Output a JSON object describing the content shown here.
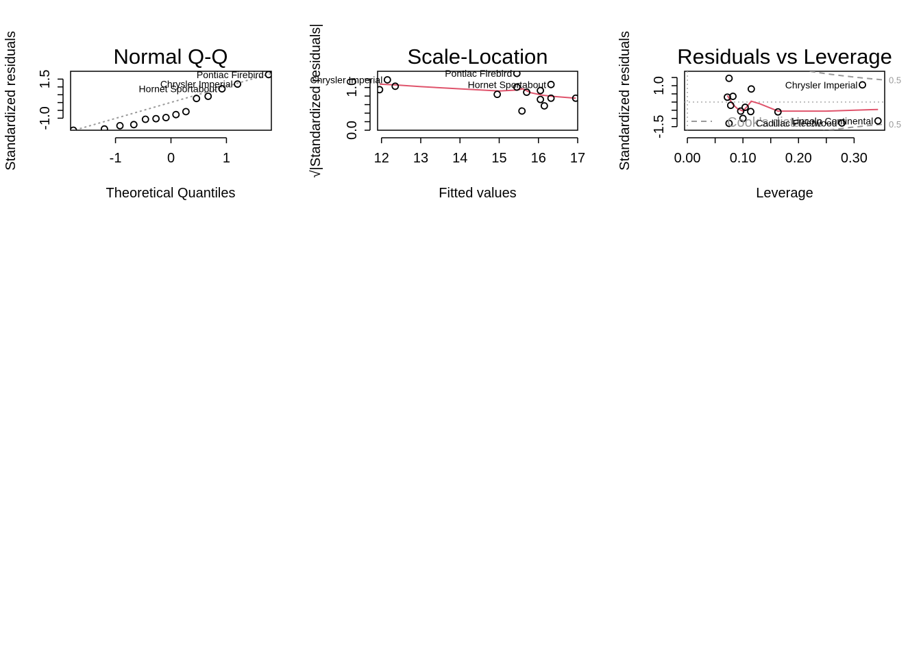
{
  "colors": {
    "smoother": "#DF536B",
    "reference": "#999999",
    "points": "#000000",
    "background": "#FFFFFF"
  },
  "chart_data": [
    {
      "id": "qq",
      "type": "scatter",
      "title": "Normal Q-Q",
      "xlabel": "Theoretical Quantiles",
      "ylabel": "Standardized residuals",
      "xlim": [
        -1.81,
        1.81
      ],
      "ylim": [
        -1.77,
        2.0
      ],
      "xticks": [
        -1,
        0,
        1
      ],
      "yticks": [
        -1.0,
        -0.5,
        0.0,
        0.5,
        1.0,
        1.5
      ],
      "ytick_labels": [
        "-1.0",
        "",
        "",
        "",
        "",
        "1.5"
      ],
      "points": [
        {
          "x": -1.76,
          "y": -1.77
        },
        {
          "x": -1.2,
          "y": -1.69
        },
        {
          "x": -0.92,
          "y": -1.48
        },
        {
          "x": -0.67,
          "y": -1.41
        },
        {
          "x": -0.46,
          "y": -1.07
        },
        {
          "x": -0.27,
          "y": -1.03
        },
        {
          "x": -0.09,
          "y": -0.96
        },
        {
          "x": 0.09,
          "y": -0.77
        },
        {
          "x": 0.27,
          "y": -0.58
        },
        {
          "x": 0.46,
          "y": 0.26
        },
        {
          "x": 0.67,
          "y": 0.4
        },
        {
          "x": 0.92,
          "y": 0.88
        },
        {
          "x": 1.2,
          "y": 1.18
        },
        {
          "x": 1.76,
          "y": 1.79
        }
      ],
      "reference_line": [
        [
          -1.81,
          -1.84
        ],
        [
          1.81,
          1.86
        ]
      ],
      "labels": [
        {
          "text": "Pontiac Firebird",
          "x": 1.76,
          "y": 1.79
        },
        {
          "text": "Chrysler Imperial",
          "x": 1.2,
          "y": 1.18
        },
        {
          "text": "Hornet Sportabout",
          "x": 0.92,
          "y": 0.88
        }
      ]
    },
    {
      "id": "sl",
      "type": "scatter",
      "title": "Scale-Location",
      "xlabel": "Fitted values",
      "ylabel": "√|Standardized residuals|",
      "xlim": [
        11.9,
        17.0
      ],
      "ylim": [
        0.0,
        1.38
      ],
      "xticks": [
        12,
        13,
        14,
        15,
        16,
        17
      ],
      "yticks": [
        0.0,
        0.2,
        0.4,
        0.6,
        0.8,
        1.0,
        1.2
      ],
      "ytick_labels": [
        "0.0",
        "",
        "",
        "",
        "",
        "1.0",
        ""
      ],
      "points": [
        {
          "x": 11.95,
          "y": 0.95
        },
        {
          "x": 12.15,
          "y": 1.18
        },
        {
          "x": 12.35,
          "y": 1.03
        },
        {
          "x": 14.95,
          "y": 0.84
        },
        {
          "x": 15.45,
          "y": 1.33
        },
        {
          "x": 15.45,
          "y": 1.01
        },
        {
          "x": 15.58,
          "y": 0.45
        },
        {
          "x": 15.7,
          "y": 0.89
        },
        {
          "x": 16.05,
          "y": 0.93
        },
        {
          "x": 16.05,
          "y": 0.72
        },
        {
          "x": 16.15,
          "y": 0.57
        },
        {
          "x": 16.32,
          "y": 1.07
        },
        {
          "x": 16.32,
          "y": 0.75
        },
        {
          "x": 16.95,
          "y": 0.75
        }
      ],
      "smoother": [
        [
          11.95,
          1.08
        ],
        [
          12.35,
          1.06
        ],
        [
          13.0,
          1.02
        ],
        [
          14.0,
          0.97
        ],
        [
          15.0,
          0.92
        ],
        [
          15.45,
          0.94
        ],
        [
          15.6,
          0.97
        ],
        [
          15.8,
          0.88
        ],
        [
          16.1,
          0.82
        ],
        [
          16.4,
          0.79
        ],
        [
          16.95,
          0.75
        ]
      ],
      "labels": [
        {
          "text": "Pontiac Firebird",
          "x": 15.45,
          "y": 1.33
        },
        {
          "text": "Chrysler Imperial",
          "x": 12.15,
          "y": 1.18
        },
        {
          "text": "Hornet Sportabout",
          "x": 16.32,
          "y": 1.07
        }
      ]
    },
    {
      "id": "rvl",
      "type": "scatter",
      "title": "Residuals vs Leverage",
      "xlabel": "Leverage",
      "ylabel": "Standardized residuals",
      "xlim": [
        -0.005,
        0.355
      ],
      "ylim": [
        -1.72,
        1.88
      ],
      "xticks": [
        0.0,
        0.05,
        0.1,
        0.15,
        0.2,
        0.25,
        0.3
      ],
      "xtick_labels": [
        "0.00",
        "",
        "0.10",
        "",
        "0.20",
        "",
        "0.30"
      ],
      "yticks": [
        -1.5,
        -1.0,
        -0.5,
        0.0,
        0.5,
        1.0,
        1.5
      ],
      "ytick_labels": [
        "-1.5",
        "",
        "",
        "",
        "",
        "1.0",
        ""
      ],
      "points": [
        {
          "x": 0.075,
          "y": 1.45
        },
        {
          "x": 0.072,
          "y": 0.3
        },
        {
          "x": 0.082,
          "y": 0.35
        },
        {
          "x": 0.078,
          "y": -0.2
        },
        {
          "x": 0.096,
          "y": -0.55
        },
        {
          "x": 0.1,
          "y": -1.0
        },
        {
          "x": 0.104,
          "y": -0.32
        },
        {
          "x": 0.114,
          "y": -0.58
        },
        {
          "x": 0.075,
          "y": -1.3
        },
        {
          "x": 0.115,
          "y": 0.8
        },
        {
          "x": 0.163,
          "y": -0.6
        },
        {
          "x": 0.278,
          "y": -1.28
        },
        {
          "x": 0.315,
          "y": 1.05
        },
        {
          "x": 0.343,
          "y": -1.15
        }
      ],
      "smoother": [
        [
          0.072,
          0.4
        ],
        [
          0.082,
          -0.15
        ],
        [
          0.09,
          -0.4
        ],
        [
          0.1,
          -0.55
        ],
        [
          0.108,
          -0.25
        ],
        [
          0.115,
          0.05
        ],
        [
          0.13,
          -0.1
        ],
        [
          0.163,
          -0.55
        ],
        [
          0.25,
          -0.55
        ],
        [
          0.343,
          -0.45
        ]
      ],
      "hline": 0,
      "vline": 0,
      "cooks": {
        "level": 0.5,
        "label": "0.5",
        "legend": "Cook's distance",
        "p": 2
      },
      "labels": [
        {
          "text": "Chrysler Imperial",
          "x": 0.315,
          "y": 1.05
        },
        {
          "text": "Lincoln Continental",
          "x": 0.343,
          "y": -1.15
        },
        {
          "text": "Cadillac Fleetwood",
          "x": 0.278,
          "y": -1.28
        }
      ]
    }
  ]
}
